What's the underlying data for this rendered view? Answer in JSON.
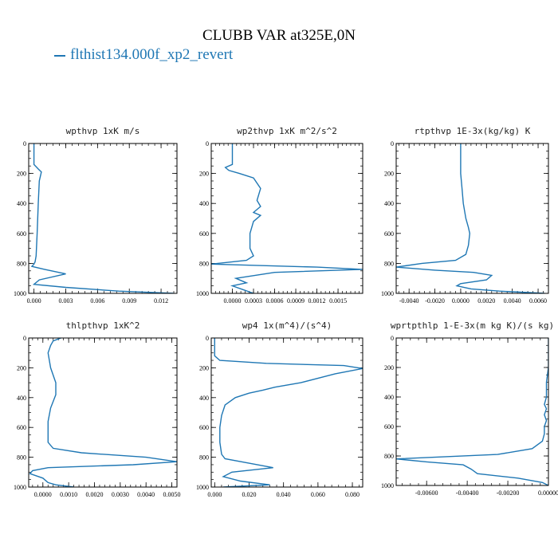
{
  "title": "CLUBB VAR at325E,0N",
  "legend": {
    "label": "flthist134.000f_xp2_revert",
    "color": "#1f77b4"
  },
  "chart_data": [
    {
      "type": "line",
      "title": "wpthvp   1xK m/s",
      "xlim": [
        -0.0005,
        0.0135
      ],
      "ylim": [
        1000,
        0
      ],
      "xticks": [
        0.0,
        0.003,
        0.006,
        0.009,
        0.012
      ],
      "xtick_labels": [
        "0.000",
        "0.003",
        "0.006",
        "0.009",
        "0.012"
      ],
      "yticks": [
        0,
        200,
        400,
        600,
        800,
        1000
      ],
      "ytick_labels": [
        "0",
        "200",
        "400",
        "600",
        "800",
        "1000"
      ],
      "series": [
        {
          "x": [
            0.0,
            0.0,
            0.0002,
            0.0004,
            0.0007,
            0.0005,
            0.0004,
            0.0003,
            0.0002,
            0.0001,
            0.0,
            -0.0002,
            0.001,
            0.003,
            0.0005,
            0.0,
            0.003,
            0.008,
            0.0132
          ],
          "y": [
            0,
            140,
            155,
            170,
            190,
            250,
            400,
            600,
            750,
            790,
            805,
            820,
            840,
            870,
            910,
            940,
            960,
            985,
            1000
          ]
        }
      ]
    },
    {
      "type": "line",
      "title": "wp2thvp   1xK m^2/s^2",
      "xlim": [
        -0.0003,
        0.00185
      ],
      "ylim": [
        1000,
        0
      ],
      "xticks": [
        0.0,
        0.0003,
        0.0006,
        0.0009,
        0.0012,
        0.0015
      ],
      "xtick_labels": [
        "0.0000",
        "0.0003",
        "0.0006",
        "0.0009",
        "0.0012",
        "0.0015"
      ],
      "yticks": [
        0,
        200,
        400,
        600,
        800,
        1000
      ],
      "ytick_labels": [
        "0",
        "200",
        "400",
        "600",
        "800",
        "1000"
      ],
      "series": [
        {
          "x": [
            0.0,
            0.0,
            -0.0001,
            -5e-05,
            0.0001,
            0.0003,
            0.0004,
            0.00035,
            0.0004,
            0.0003,
            0.0004,
            0.0003,
            0.00025,
            0.00025,
            0.0003,
            0.0002,
            -0.0003,
            0.0012,
            0.00185,
            0.0006,
            5e-05,
            0.0002,
            0.0,
            0.00015,
            0.0003
          ],
          "y": [
            0,
            140,
            160,
            180,
            200,
            230,
            300,
            380,
            420,
            460,
            480,
            520,
            600,
            700,
            750,
            780,
            805,
            825,
            840,
            860,
            900,
            930,
            950,
            975,
            1000
          ]
        }
      ]
    },
    {
      "type": "line",
      "title": "rtpthvp   1E-3x(kg/kg) K",
      "xlim": [
        -0.005,
        0.0068
      ],
      "ylim": [
        1000,
        0
      ],
      "xticks": [
        -0.004,
        -0.002,
        0.0,
        0.002,
        0.004,
        0.006
      ],
      "xtick_labels": [
        "-0.0040",
        "-0.0020",
        "0.0000",
        "0.0020",
        "0.0040",
        "0.0060"
      ],
      "yticks": [
        0,
        200,
        400,
        600,
        800,
        1000
      ],
      "ytick_labels": [
        "0",
        "200",
        "400",
        "600",
        "800",
        "1000"
      ],
      "series": [
        {
          "x": [
            0.0,
            0.0,
            0.0001,
            0.0002,
            0.0004,
            0.0006,
            0.0007,
            0.0006,
            0.0004,
            -0.0004,
            -0.003,
            -0.005,
            -0.002,
            0.001,
            0.0024,
            0.002,
            0.0,
            -0.0003,
            0.0008,
            0.003,
            0.0065
          ],
          "y": [
            0,
            200,
            300,
            400,
            500,
            560,
            600,
            680,
            740,
            780,
            800,
            825,
            845,
            860,
            880,
            910,
            935,
            950,
            970,
            985,
            1000
          ]
        }
      ]
    },
    {
      "type": "line",
      "title": "thlpthvp   1xK^2",
      "xlim": [
        -0.00055,
        0.0052
      ],
      "ylim": [
        1000,
        0
      ],
      "xticks": [
        0.0,
        0.001,
        0.002,
        0.003,
        0.004,
        0.005
      ],
      "xtick_labels": [
        "0.0000",
        "0.0010",
        "0.0020",
        "0.0030",
        "0.0040",
        "0.0050"
      ],
      "yticks": [
        0,
        200,
        400,
        600,
        800,
        1000
      ],
      "ytick_labels": [
        "0",
        "200",
        "400",
        "600",
        "800",
        "1000"
      ],
      "series": [
        {
          "x": [
            0.0007,
            0.0004,
            0.0003,
            0.0002,
            0.0003,
            0.0005,
            0.0005,
            0.0003,
            0.0002,
            0.0002,
            0.0002,
            0.0004,
            0.0015,
            0.004,
            0.0052,
            0.0035,
            0.0002,
            -0.0004,
            -0.0005,
            0.0,
            0.0002,
            0.0005,
            0.0012
          ],
          "y": [
            0,
            20,
            50,
            100,
            200,
            300,
            380,
            470,
            560,
            640,
            700,
            740,
            770,
            800,
            830,
            850,
            870,
            890,
            910,
            940,
            970,
            985,
            1000
          ]
        }
      ]
    },
    {
      "type": "line",
      "title": "wp4   1x(m^4)/(s^4)",
      "xlim": [
        -0.002,
        0.086
      ],
      "ylim": [
        1000,
        0
      ],
      "xticks": [
        0.0,
        0.02,
        0.04,
        0.06,
        0.08
      ],
      "xtick_labels": [
        "0.000",
        "0.020",
        "0.040",
        "0.060",
        "0.080"
      ],
      "yticks": [
        0,
        200,
        400,
        600,
        800,
        1000
      ],
      "ytick_labels": [
        "0",
        "200",
        "400",
        "600",
        "800",
        "1000"
      ],
      "series": [
        {
          "x": [
            0.0,
            0.0,
            0.003,
            0.03,
            0.075,
            0.086,
            0.07,
            0.05,
            0.035,
            0.028,
            0.02,
            0.012,
            0.006,
            0.004,
            0.003,
            0.003,
            0.004,
            0.006,
            0.02,
            0.034,
            0.01,
            0.005,
            0.015,
            0.032,
            0.005
          ],
          "y": [
            0,
            120,
            150,
            170,
            185,
            205,
            240,
            300,
            330,
            350,
            370,
            400,
            450,
            520,
            600,
            700,
            780,
            810,
            840,
            870,
            900,
            930,
            960,
            985,
            1000
          ]
        }
      ]
    },
    {
      "type": "line",
      "title": "wprtpthlp   1-E-3x(m kg K)/(s kg)",
      "xlim": [
        -0.0075,
        0.0
      ],
      "ylim": [
        1000,
        0
      ],
      "xticks": [
        -0.006,
        -0.004,
        -0.002,
        0.0
      ],
      "xtick_labels": [
        "-0.00600",
        "-0.00400",
        "-0.00200",
        "0.00000"
      ],
      "yticks": [
        0,
        200,
        400,
        600,
        800,
        1000
      ],
      "ytick_labels": [
        "0",
        "200",
        "400",
        "600",
        "800",
        "1000"
      ],
      "series": [
        {
          "x": [
            0.0,
            0.0,
            -0.0001,
            -0.0001,
            -0.0002,
            -0.0001,
            -0.0002,
            -0.0001,
            -0.0002,
            -0.0002,
            -0.0003,
            -0.0008,
            -0.0025,
            -0.0075,
            -0.006,
            -0.0042,
            -0.0038,
            -0.0035,
            -0.0015,
            -0.0003,
            0.0
          ],
          "y": [
            0,
            200,
            300,
            400,
            450,
            480,
            520,
            560,
            600,
            650,
            700,
            750,
            790,
            820,
            840,
            860,
            890,
            920,
            950,
            980,
            1000
          ]
        }
      ]
    }
  ]
}
